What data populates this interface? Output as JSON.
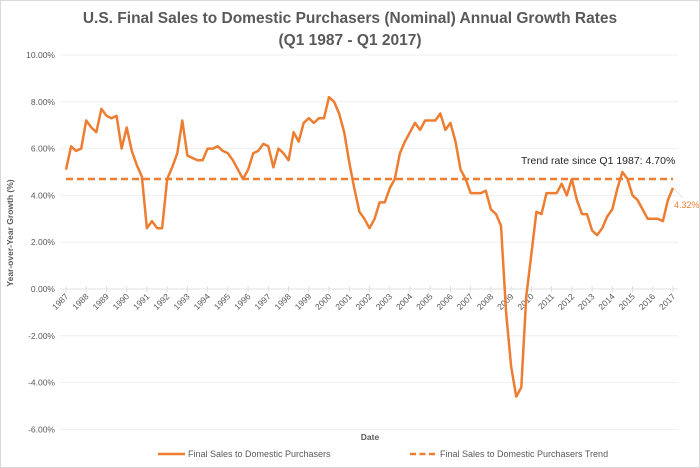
{
  "chart_data": {
    "type": "line",
    "title": "U.S. Final Sales to Domestic Purchasers (Nominal) Annual Growth Rates",
    "subtitle": "(Q1 1987 - Q1 2017)",
    "xlabel": "Date",
    "ylabel": "Year-over-Year Growth (%)",
    "ylim": [
      -6,
      10
    ],
    "xlim": [
      1987,
      2017
    ],
    "y_ticks": [
      10,
      8,
      6,
      4,
      2,
      0,
      -2,
      -4,
      -6
    ],
    "y_tick_labels": [
      "10.00%",
      "8.00%",
      "6.00%",
      "4.00%",
      "2.00%",
      "0.00%",
      "-2.00%",
      "-4.00%",
      "-6.00%"
    ],
    "x_tick_labels": [
      "1987",
      "1988",
      "1989",
      "1990",
      "1991",
      "1992",
      "1993",
      "1994",
      "1995",
      "1996",
      "1997",
      "1998",
      "1999",
      "2000",
      "2001",
      "2002",
      "2003",
      "2004",
      "2005",
      "2006",
      "2007",
      "2008",
      "2009",
      "2010",
      "2011",
      "2012",
      "2013",
      "2014",
      "2015",
      "2016",
      "2017"
    ],
    "grid": true,
    "legend_position": "bottom",
    "color": "#ed7d31",
    "series": [
      {
        "name": "Final Sales to Domestic Purchasers",
        "style": "solid",
        "x_start": 1987,
        "x_step": 0.25,
        "values": [
          5.1,
          6.1,
          5.9,
          6.0,
          7.2,
          6.9,
          6.7,
          7.7,
          7.4,
          7.3,
          7.4,
          6.0,
          6.9,
          5.9,
          5.3,
          4.8,
          2.6,
          2.9,
          2.6,
          2.6,
          4.7,
          5.2,
          5.8,
          7.2,
          5.7,
          5.6,
          5.5,
          5.5,
          6.0,
          6.0,
          6.1,
          5.9,
          5.8,
          5.5,
          5.1,
          4.7,
          5.1,
          5.8,
          5.9,
          6.2,
          6.1,
          5.2,
          6.0,
          5.8,
          5.5,
          6.7,
          6.3,
          7.1,
          7.3,
          7.1,
          7.3,
          7.3,
          8.2,
          8.0,
          7.5,
          6.7,
          5.4,
          4.3,
          3.3,
          3.0,
          2.6,
          3.0,
          3.7,
          3.7,
          4.3,
          4.7,
          5.8,
          6.3,
          6.7,
          7.1,
          6.8,
          7.2,
          7.2,
          7.2,
          7.5,
          6.8,
          7.1,
          6.3,
          5.1,
          4.7,
          4.1,
          4.1,
          4.1,
          4.2,
          3.4,
          3.2,
          2.7,
          -1.0,
          -3.3,
          -4.6,
          -4.2,
          -0.3,
          1.5,
          3.3,
          3.2,
          4.1,
          4.1,
          4.1,
          4.5,
          4.0,
          4.7,
          3.8,
          3.2,
          3.2,
          2.5,
          2.3,
          2.6,
          3.1,
          3.4,
          4.3,
          5.0,
          4.7,
          4.0,
          3.8,
          3.4,
          3.0,
          3.0,
          3.0,
          2.9,
          3.8,
          4.32
        ]
      },
      {
        "name": "Final Sales to Domestic Purchasers Trend",
        "style": "dashed",
        "x": [
          1987,
          2017
        ],
        "values": [
          4.7,
          4.7
        ]
      }
    ],
    "annotations": [
      {
        "text": "Trend rate since Q1 1987: 4.70%",
        "x": 2012,
        "y": 5.3
      },
      {
        "text": "4.32%",
        "x": 2017,
        "y": 4.32,
        "kind": "end-label"
      }
    ]
  },
  "legend": {
    "items": [
      {
        "label": "Final Sales to Domestic Purchasers",
        "style": "solid"
      },
      {
        "label": "Final Sales to Domestic Purchasers Trend",
        "style": "dashed"
      }
    ]
  }
}
